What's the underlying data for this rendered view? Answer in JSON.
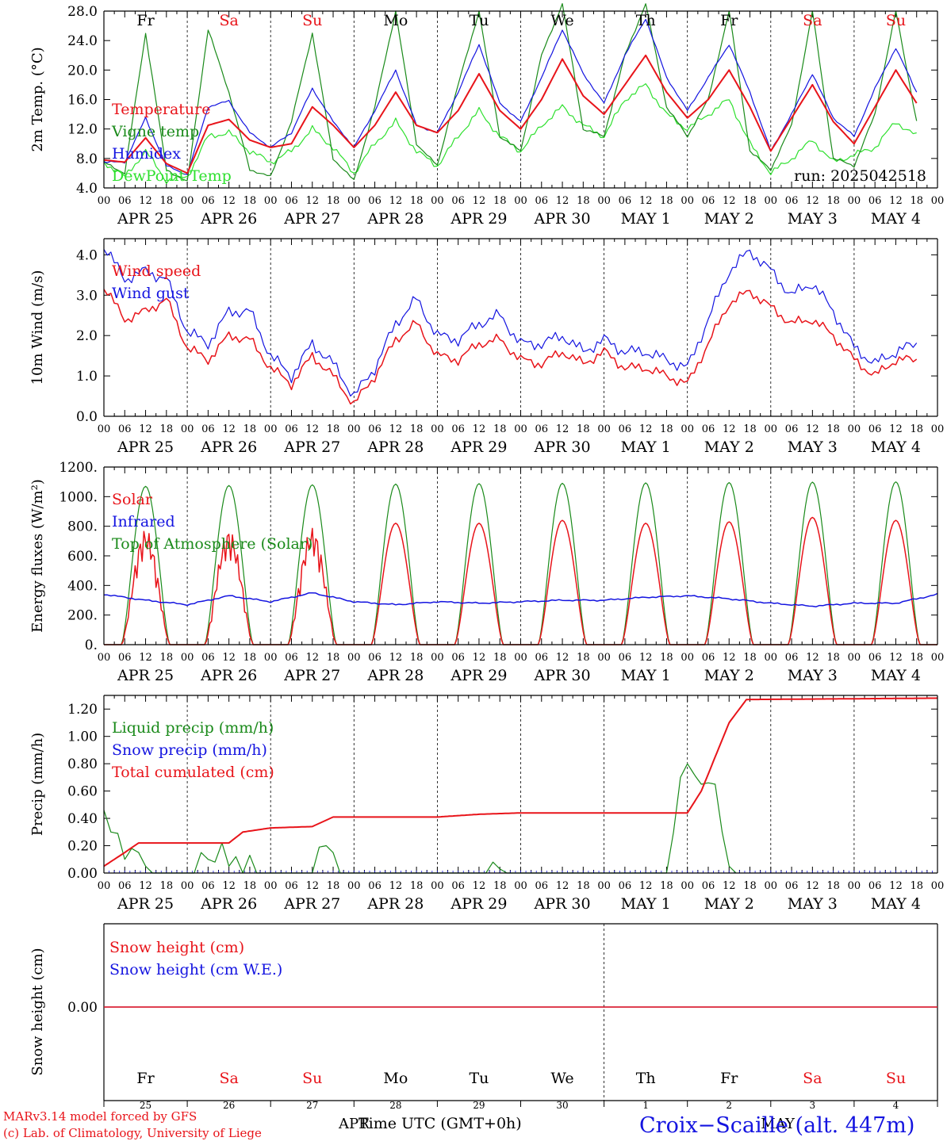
{
  "colors": {
    "red": "#e8141a",
    "darkgreen": "#1a8a1a",
    "blue": "#1414e0",
    "lightgreen": "#2ee02e",
    "black": "#000000"
  },
  "day_names": [
    {
      "label": "Fr",
      "color": "black"
    },
    {
      "label": "Sa",
      "color": "red"
    },
    {
      "label": "Su",
      "color": "red"
    },
    {
      "label": "Mo",
      "color": "black"
    },
    {
      "label": "Tu",
      "color": "black"
    },
    {
      "label": "We",
      "color": "black"
    },
    {
      "label": "Th",
      "color": "black"
    },
    {
      "label": "Fr",
      "color": "black"
    },
    {
      "label": "Sa",
      "color": "red"
    },
    {
      "label": "Su",
      "color": "red"
    }
  ],
  "date_labels": [
    "APR 25",
    "APR 26",
    "APR 27",
    "APR 28",
    "APR 29",
    "APR 30",
    "MAY  1",
    "MAY  2",
    "MAY  3",
    "MAY  4"
  ],
  "hour_ticks": [
    "00",
    "06",
    "12",
    "18"
  ],
  "final_hour": "00",
  "run_label": "run: 2025042518",
  "panels": {
    "temperature": {
      "ylabel": "2m Temp. (°C)",
      "ylim": [
        4.0,
        28.0
      ],
      "yticks": [
        "4.0",
        "8.0",
        "12.0",
        "16.0",
        "20.0",
        "24.0",
        "28.0"
      ],
      "legend": [
        {
          "text": "Temperature",
          "color": "red"
        },
        {
          "text": "Vigne temp",
          "color": "darkgreen"
        },
        {
          "text": "Humidex",
          "color": "blue"
        },
        {
          "text": "DewPoint Temp",
          "color": "lightgreen"
        }
      ]
    },
    "wind": {
      "ylabel": "10m Wind (m/s)",
      "ylim": [
        0.0,
        4.4
      ],
      "yticks": [
        "0.0",
        "1.0",
        "2.0",
        "3.0",
        "4.0"
      ],
      "legend": [
        {
          "text": "Wind speed",
          "color": "red"
        },
        {
          "text": "Wind gust",
          "color": "blue"
        }
      ]
    },
    "energy": {
      "ylabel": "Energy fluxes (W/m²)",
      "ylim": [
        0,
        1200
      ],
      "yticks": [
        "0.",
        "200.",
        "400.",
        "600.",
        "800.",
        "1000.",
        "1200."
      ],
      "legend": [
        {
          "text": "Solar",
          "color": "red"
        },
        {
          "text": "Infrared",
          "color": "blue"
        },
        {
          "text": "Top of Atmosphere (Solar)",
          "color": "darkgreen"
        }
      ]
    },
    "precip": {
      "ylabel": "Precip (mm/h)",
      "ylim": [
        0.0,
        1.3
      ],
      "yticks": [
        "0.00",
        "0.20",
        "0.40",
        "0.60",
        "0.80",
        "1.00",
        "1.20"
      ],
      "legend": [
        {
          "text": "Liquid precip (mm/h)",
          "color": "darkgreen"
        },
        {
          "text": "Snow precip (mm/h)",
          "color": "blue"
        },
        {
          "text": "Total cumulated (cm)",
          "color": "red"
        }
      ]
    },
    "snow": {
      "ylabel": "Snow height (cm)",
      "yticks": [
        "0.00"
      ],
      "legend": [
        {
          "text": "Snow height (cm)",
          "color": "red"
        },
        {
          "text": "Snow height (cm W.E.)",
          "color": "blue"
        }
      ],
      "day_numbers": [
        "25",
        "26",
        "27",
        "28",
        "29",
        "30",
        "1",
        "2",
        "3",
        "4"
      ],
      "month_labels": [
        "APR",
        "MAY"
      ]
    }
  },
  "footer": {
    "credit1": "MARv3.14 model forced by GFS",
    "credit2": "(c) Lab. of Climatology, University of Liege",
    "xlabel": "Time UTC (GMT+0h)",
    "station": "Croix−Scaille (alt. 447m)"
  },
  "chart_data": [
    {
      "type": "line",
      "title": "",
      "ylabel": "2m Temp. (°C)",
      "x_unit": "hours since 2025-04-25 00 UTC (day labels printed as APR 25 ... MAY 4)",
      "ylim": [
        4.0,
        28.0
      ],
      "series": [
        {
          "name": "Temperature",
          "x": [
            0,
            6,
            12,
            18,
            24,
            30,
            36,
            42,
            48,
            54,
            60,
            66,
            72,
            78,
            84,
            90,
            96,
            102,
            108,
            114,
            120,
            126,
            132,
            138,
            144,
            150,
            156,
            162,
            168,
            174,
            180,
            186,
            192,
            198,
            204,
            210,
            216,
            222,
            228,
            234
          ],
          "values": [
            7.8,
            7.5,
            10.8,
            7.3,
            6.0,
            12.5,
            13.3,
            10.5,
            9.5,
            10.0,
            15.0,
            12.5,
            9.5,
            12.5,
            17.0,
            12.5,
            11.5,
            14.5,
            19.5,
            14.5,
            12.0,
            16.0,
            21.5,
            16.5,
            14.0,
            18.0,
            22.0,
            17.0,
            13.5,
            16.0,
            20.0,
            15.0,
            9.0,
            13.5,
            18.0,
            13.0,
            10.0,
            15.0,
            20.0,
            15.5
          ]
        },
        {
          "name": "Vigne temp",
          "x": [
            0,
            6,
            12,
            18,
            24,
            30,
            36,
            42,
            48,
            54,
            60,
            66,
            72,
            78,
            84,
            90,
            96,
            102,
            108,
            114,
            120,
            126,
            132,
            138,
            144,
            150,
            156,
            162,
            168,
            174,
            180,
            186,
            192,
            198,
            204,
            210,
            216,
            222,
            228,
            234
          ],
          "values": [
            7.5,
            6.0,
            25.0,
            6.5,
            4.8,
            25.5,
            17.0,
            6.5,
            5.5,
            13.0,
            25.0,
            8.0,
            5.0,
            15.0,
            28.0,
            10.0,
            7.0,
            18.0,
            28.0,
            11.0,
            9.0,
            22.0,
            29.0,
            12.0,
            11.0,
            22.0,
            29.0,
            15.0,
            11.0,
            16.0,
            28.0,
            9.0,
            6.5,
            12.5,
            28.0,
            8.0,
            7.0,
            14.0,
            28.0,
            13.0
          ]
        },
        {
          "name": "Humidex",
          "x": [
            0,
            6,
            12,
            18,
            24,
            30,
            36,
            42,
            48,
            54,
            60,
            66,
            72,
            78,
            84,
            90,
            96,
            102,
            108,
            114,
            120,
            126,
            132,
            138,
            144,
            150,
            156,
            162,
            168,
            174,
            180,
            186,
            192,
            198,
            204,
            210,
            216,
            222,
            228,
            234
          ],
          "values": [
            7.5,
            7.5,
            13.5,
            7.0,
            5.8,
            15.0,
            15.8,
            11.5,
            9.5,
            11.5,
            17.5,
            13.0,
            9.5,
            14.5,
            20.0,
            12.5,
            11.5,
            17.0,
            23.5,
            15.5,
            13.0,
            19.0,
            25.5,
            19.5,
            15.5,
            22.0,
            27.0,
            19.0,
            14.5,
            19.0,
            23.5,
            17.0,
            9.0,
            14.0,
            19.5,
            13.5,
            11.0,
            17.5,
            23.0,
            17.0
          ]
        },
        {
          "name": "DewPoint Temp",
          "x": [
            0,
            6,
            12,
            18,
            24,
            30,
            36,
            42,
            48,
            54,
            60,
            66,
            72,
            78,
            84,
            90,
            96,
            102,
            108,
            114,
            120,
            126,
            132,
            138,
            144,
            150,
            156,
            162,
            168,
            174,
            180,
            186,
            192,
            198,
            204,
            210,
            216,
            222,
            228,
            234
          ],
          "values": [
            7.5,
            5.5,
            9.0,
            5.0,
            5.5,
            11.0,
            11.5,
            9.0,
            7.5,
            9.0,
            12.0,
            9.5,
            6.0,
            10.0,
            13.0,
            9.0,
            7.0,
            11.0,
            14.5,
            11.0,
            9.0,
            12.5,
            15.0,
            12.5,
            11.0,
            16.0,
            18.0,
            14.0,
            12.0,
            14.0,
            16.0,
            10.0,
            6.0,
            8.0,
            10.5,
            7.5,
            8.5,
            9.5,
            13.0,
            11.0
          ]
        }
      ]
    },
    {
      "type": "line",
      "title": "",
      "ylabel": "10m Wind (m/s)",
      "ylim": [
        0.0,
        4.4
      ],
      "series": [
        {
          "name": "Wind speed",
          "x": [
            0,
            6,
            12,
            18,
            24,
            30,
            36,
            42,
            48,
            54,
            60,
            66,
            72,
            78,
            84,
            90,
            96,
            102,
            108,
            114,
            120,
            126,
            132,
            138,
            144,
            150,
            156,
            162,
            168,
            174,
            180,
            186,
            192,
            198,
            204,
            210,
            216,
            222,
            228,
            234
          ],
          "values": [
            3.2,
            2.4,
            2.6,
            2.9,
            1.7,
            1.4,
            2.0,
            1.9,
            1.2,
            0.8,
            1.5,
            1.0,
            0.3,
            1.0,
            1.9,
            2.3,
            1.5,
            1.4,
            1.8,
            1.9,
            1.4,
            1.3,
            1.6,
            1.3,
            1.6,
            1.2,
            1.2,
            1.0,
            0.8,
            1.8,
            2.8,
            3.1,
            2.7,
            2.3,
            2.4,
            2.0,
            1.4,
            1.0,
            1.4,
            1.4
          ]
        },
        {
          "name": "Wind gust",
          "x": [
            0,
            6,
            12,
            18,
            24,
            30,
            36,
            42,
            48,
            54,
            60,
            66,
            72,
            78,
            84,
            90,
            96,
            102,
            108,
            114,
            120,
            126,
            132,
            138,
            144,
            150,
            156,
            162,
            168,
            174,
            180,
            186,
            192,
            198,
            204,
            210,
            216,
            222,
            228,
            234
          ],
          "values": [
            4.2,
            3.4,
            3.6,
            3.4,
            2.1,
            1.8,
            2.6,
            2.6,
            1.5,
            1.0,
            1.8,
            1.3,
            0.5,
            1.2,
            2.3,
            2.9,
            2.0,
            1.9,
            2.3,
            2.5,
            1.8,
            1.8,
            2.0,
            1.6,
            1.9,
            1.6,
            1.6,
            1.4,
            1.2,
            2.4,
            3.6,
            4.1,
            3.6,
            3.0,
            3.3,
            2.6,
            1.7,
            1.3,
            1.6,
            1.8
          ]
        }
      ]
    },
    {
      "type": "line",
      "title": "",
      "ylabel": "Energy fluxes (W/m²)",
      "ylim": [
        0,
        1200
      ],
      "daylight_hours": [
        5,
        19
      ],
      "series": [
        {
          "name": "Solar",
          "daily_peak": [
            780,
            780,
            790,
            820,
            820,
            840,
            820,
            830,
            860,
            840
          ]
        },
        {
          "name": "Top of Atmosphere (Solar)",
          "daily_peak": [
            1070,
            1075,
            1080,
            1085,
            1088,
            1090,
            1093,
            1095,
            1098,
            1100
          ]
        },
        {
          "name": "Infrared",
          "x": [
            0,
            12,
            24,
            36,
            48,
            60,
            72,
            84,
            96,
            108,
            120,
            132,
            144,
            156,
            168,
            180,
            192,
            204,
            216,
            228,
            240
          ],
          "values": [
            340,
            300,
            270,
            330,
            290,
            350,
            290,
            270,
            290,
            280,
            290,
            300,
            300,
            320,
            330,
            310,
            280,
            260,
            280,
            280,
            340
          ]
        }
      ]
    },
    {
      "type": "line",
      "title": "",
      "ylabel": "Precip (mm/h)",
      "ylim": [
        0.0,
        1.3
      ],
      "series": [
        {
          "name": "Liquid precip (mm/h)",
          "x": [
            0,
            2,
            4,
            6,
            8,
            10,
            12,
            14,
            16,
            26,
            28,
            30,
            32,
            34,
            36,
            38,
            40,
            42,
            44,
            48,
            60,
            62,
            64,
            66,
            68,
            110,
            112,
            114,
            116,
            162,
            164,
            166,
            168,
            170,
            172,
            174,
            176,
            178,
            180,
            182
          ],
          "values": [
            0.46,
            0.3,
            0.29,
            0.1,
            0.18,
            0.15,
            0.05,
            0.0,
            0.0,
            0.0,
            0.15,
            0.1,
            0.08,
            0.22,
            0.05,
            0.12,
            0.0,
            0.13,
            0.0,
            0.0,
            0.0,
            0.19,
            0.2,
            0.15,
            0.0,
            0.0,
            0.08,
            0.03,
            0.0,
            0.0,
            0.3,
            0.7,
            0.8,
            0.72,
            0.65,
            0.66,
            0.65,
            0.3,
            0.05,
            0.0
          ]
        },
        {
          "name": "Snow precip (mm/h)",
          "x": [
            0,
            240
          ],
          "values": [
            0.0,
            0.0
          ]
        },
        {
          "name": "Total cumulated (cm)",
          "x": [
            0,
            6,
            10,
            24,
            36,
            40,
            48,
            60,
            66,
            72,
            96,
            108,
            120,
            144,
            168,
            172,
            180,
            185,
            240
          ],
          "values": [
            0.05,
            0.15,
            0.22,
            0.22,
            0.22,
            0.3,
            0.33,
            0.34,
            0.41,
            0.41,
            0.41,
            0.43,
            0.44,
            0.44,
            0.44,
            0.6,
            1.1,
            1.27,
            1.28
          ]
        }
      ]
    },
    {
      "type": "line",
      "title": "",
      "ylabel": "Snow height (cm)",
      "series": [
        {
          "name": "Snow height (cm)",
          "x": [
            0,
            240
          ],
          "values": [
            0.0,
            0.0
          ]
        },
        {
          "name": "Snow height (cm W.E.)",
          "x": [
            0,
            240
          ],
          "values": [
            0.0,
            0.0
          ]
        }
      ]
    }
  ]
}
